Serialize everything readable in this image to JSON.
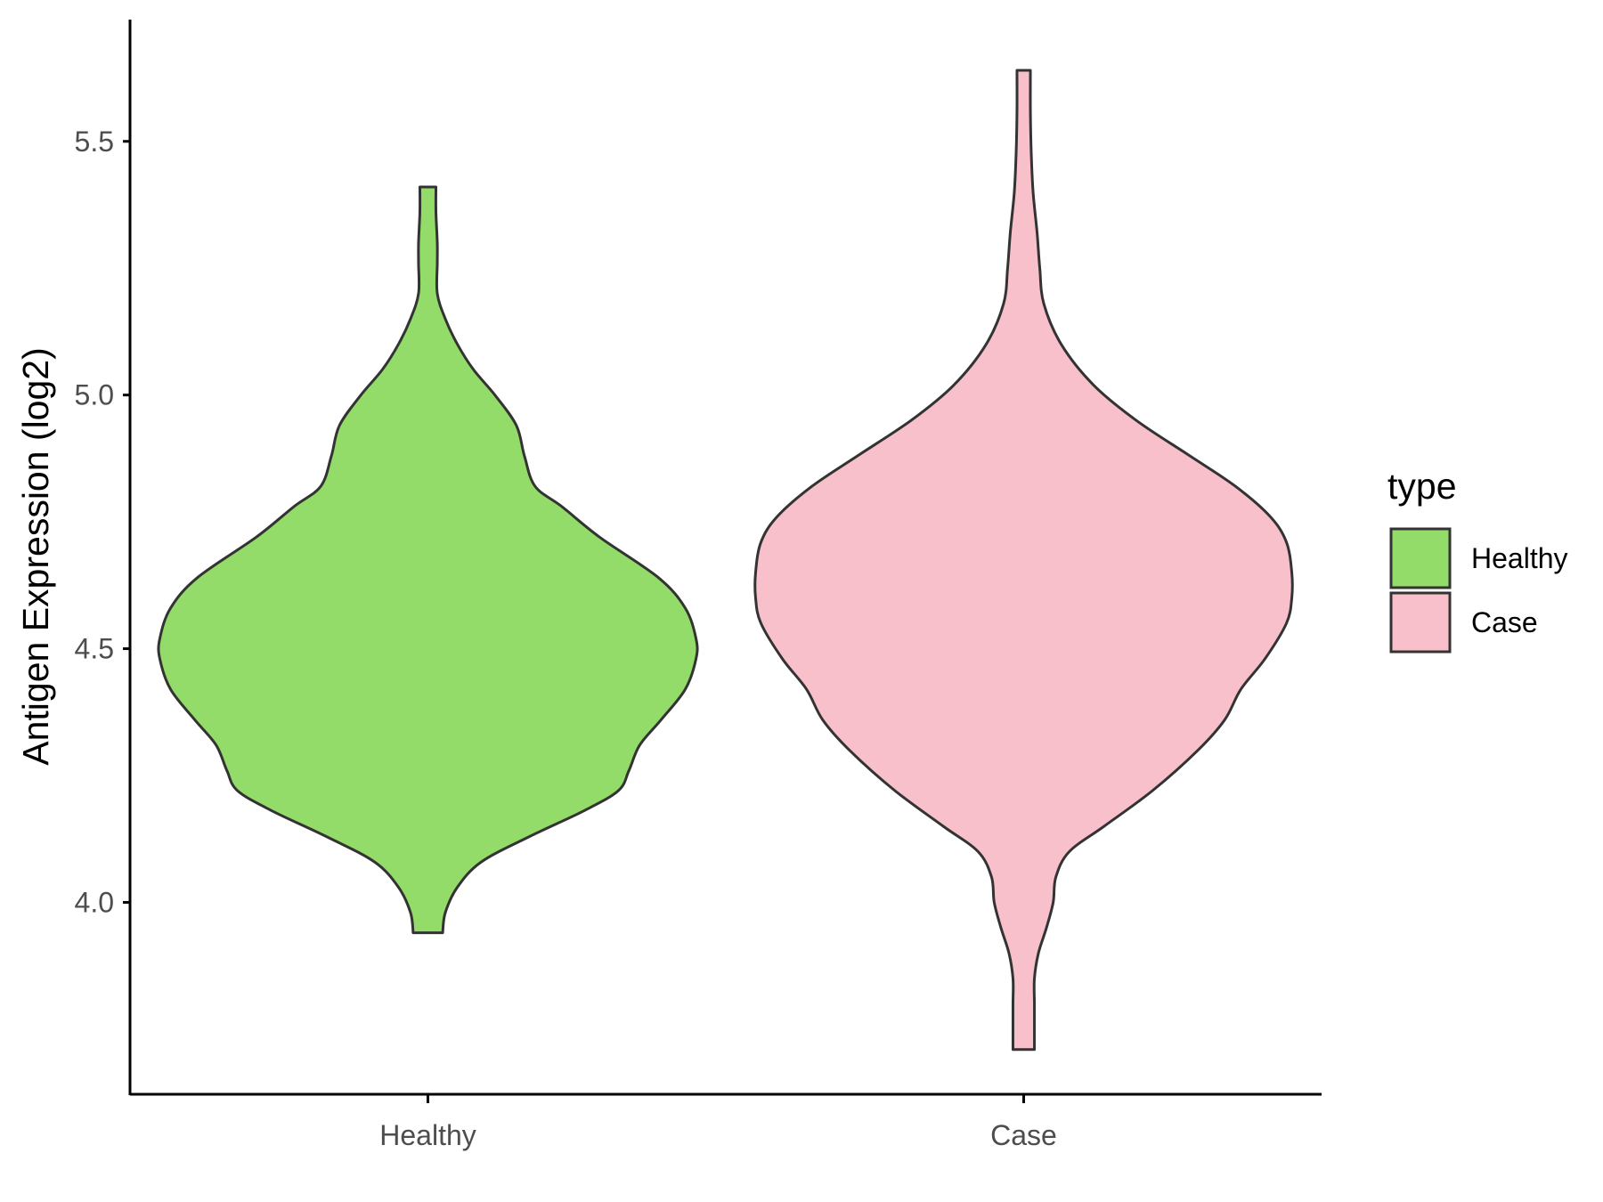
{
  "chart_data": {
    "type": "violin",
    "ylabel": "Antigen Expression (log2)",
    "xlabel": "",
    "ylim": [
      3.62,
      5.74
    ],
    "yticks": [
      4.0,
      4.5,
      5.0,
      5.5
    ],
    "ytick_labels": [
      "4.0",
      "4.5",
      "5.0",
      "5.5"
    ],
    "grid": false,
    "legend": {
      "title": "type",
      "position": "right"
    },
    "categories": [
      "Healthy",
      "Case"
    ],
    "series": [
      {
        "name": "Healthy",
        "color": "#93dc6a",
        "min": 3.94,
        "max": 5.41,
        "density_profile": [
          [
            3.94,
            0.055
          ],
          [
            3.98,
            0.065
          ],
          [
            4.03,
            0.11
          ],
          [
            4.08,
            0.2
          ],
          [
            4.13,
            0.38
          ],
          [
            4.18,
            0.58
          ],
          [
            4.22,
            0.71
          ],
          [
            4.26,
            0.75
          ],
          [
            4.31,
            0.79
          ],
          [
            4.36,
            0.87
          ],
          [
            4.42,
            0.96
          ],
          [
            4.48,
            1.0
          ],
          [
            4.52,
            1.0
          ],
          [
            4.58,
            0.96
          ],
          [
            4.64,
            0.86
          ],
          [
            4.72,
            0.64
          ],
          [
            4.78,
            0.5
          ],
          [
            4.82,
            0.4
          ],
          [
            4.88,
            0.36
          ],
          [
            4.94,
            0.33
          ],
          [
            5.0,
            0.25
          ],
          [
            5.05,
            0.17
          ],
          [
            5.1,
            0.11
          ],
          [
            5.15,
            0.065
          ],
          [
            5.2,
            0.035
          ],
          [
            5.26,
            0.035
          ],
          [
            5.3,
            0.035
          ],
          [
            5.36,
            0.03
          ],
          [
            5.41,
            0.03
          ]
        ]
      },
      {
        "name": "Case",
        "color": "#f8c0cb",
        "min": 3.71,
        "max": 5.64,
        "density_profile": [
          [
            3.71,
            0.04
          ],
          [
            3.76,
            0.04
          ],
          [
            3.8,
            0.04
          ],
          [
            3.85,
            0.04
          ],
          [
            3.9,
            0.055
          ],
          [
            3.95,
            0.085
          ],
          [
            4.0,
            0.11
          ],
          [
            4.05,
            0.12
          ],
          [
            4.1,
            0.17
          ],
          [
            4.15,
            0.3
          ],
          [
            4.22,
            0.48
          ],
          [
            4.3,
            0.65
          ],
          [
            4.36,
            0.75
          ],
          [
            4.42,
            0.81
          ],
          [
            4.48,
            0.9
          ],
          [
            4.55,
            0.98
          ],
          [
            4.6,
            1.0
          ],
          [
            4.65,
            1.0
          ],
          [
            4.71,
            0.98
          ],
          [
            4.76,
            0.92
          ],
          [
            4.82,
            0.79
          ],
          [
            4.88,
            0.62
          ],
          [
            4.95,
            0.42
          ],
          [
            5.02,
            0.26
          ],
          [
            5.1,
            0.14
          ],
          [
            5.18,
            0.075
          ],
          [
            5.25,
            0.06
          ],
          [
            5.32,
            0.05
          ],
          [
            5.4,
            0.035
          ],
          [
            5.48,
            0.028
          ],
          [
            5.56,
            0.025
          ],
          [
            5.64,
            0.025
          ]
        ]
      }
    ]
  }
}
